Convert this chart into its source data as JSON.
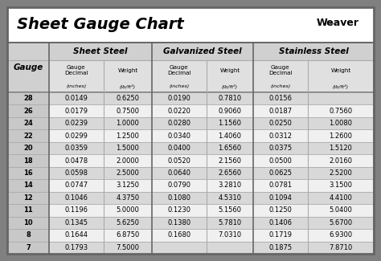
{
  "title": "Sheet Gauge Chart",
  "bg_outer": "#808080",
  "gauges": [
    28,
    26,
    24,
    22,
    20,
    18,
    16,
    14,
    12,
    11,
    10,
    8,
    7
  ],
  "sheet_steel": [
    [
      "0.0149",
      "0.6250"
    ],
    [
      "0.0179",
      "0.7500"
    ],
    [
      "0.0239",
      "1.0000"
    ],
    [
      "0.0299",
      "1.2500"
    ],
    [
      "0.0359",
      "1.5000"
    ],
    [
      "0.0478",
      "2.0000"
    ],
    [
      "0.0598",
      "2.5000"
    ],
    [
      "0.0747",
      "3.1250"
    ],
    [
      "0.1046",
      "4.3750"
    ],
    [
      "0.1196",
      "5.0000"
    ],
    [
      "0.1345",
      "5.6250"
    ],
    [
      "0.1644",
      "6.8750"
    ],
    [
      "0.1793",
      "7.5000"
    ]
  ],
  "galvanized_steel": [
    [
      "0.0190",
      "0.7810"
    ],
    [
      "0.0220",
      "0.9060"
    ],
    [
      "0.0280",
      "1.1560"
    ],
    [
      "0.0340",
      "1.4060"
    ],
    [
      "0.0400",
      "1.6560"
    ],
    [
      "0.0520",
      "2.1560"
    ],
    [
      "0.0640",
      "2.6560"
    ],
    [
      "0.0790",
      "3.2810"
    ],
    [
      "0.1080",
      "4.5310"
    ],
    [
      "0.1230",
      "5.1560"
    ],
    [
      "0.1380",
      "5.7810"
    ],
    [
      "0.1680",
      "7.0310"
    ],
    [
      "",
      ""
    ]
  ],
  "stainless_steel": [
    [
      "0.0156",
      ""
    ],
    [
      "0.0187",
      "0.7560"
    ],
    [
      "0.0250",
      "1.0080"
    ],
    [
      "0.0312",
      "1.2600"
    ],
    [
      "0.0375",
      "1.5120"
    ],
    [
      "0.0500",
      "2.0160"
    ],
    [
      "0.0625",
      "2.5200"
    ],
    [
      "0.0781",
      "3.1500"
    ],
    [
      "0.1094",
      "4.4100"
    ],
    [
      "0.1250",
      "5.0400"
    ],
    [
      "0.1406",
      "5.6700"
    ],
    [
      "0.1719",
      "6.9300"
    ],
    [
      "0.1875",
      "7.8710"
    ]
  ],
  "row_colors": [
    "#d8d8d8",
    "#f0f0f0"
  ],
  "gauge_col_color": "#c8c8c8",
  "header1_color": "#d0d0d0",
  "header2_color": "#e0e0e0",
  "line_color_major": "#666666",
  "line_color_minor": "#aaaaaa",
  "white": "#ffffff"
}
